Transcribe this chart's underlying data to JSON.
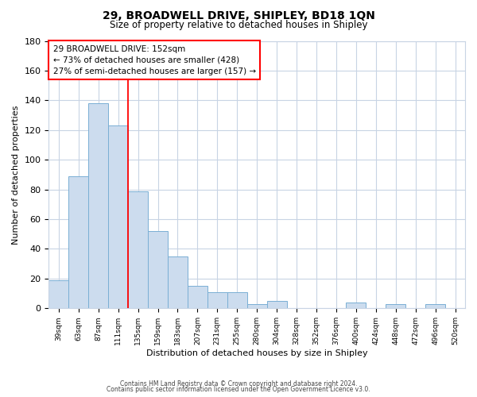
{
  "title": "29, BROADWELL DRIVE, SHIPLEY, BD18 1QN",
  "subtitle": "Size of property relative to detached houses in Shipley",
  "xlabel": "Distribution of detached houses by size in Shipley",
  "ylabel": "Number of detached properties",
  "bar_labels": [
    "39sqm",
    "63sqm",
    "87sqm",
    "111sqm",
    "135sqm",
    "159sqm",
    "183sqm",
    "207sqm",
    "231sqm",
    "255sqm",
    "280sqm",
    "304sqm",
    "328sqm",
    "352sqm",
    "376sqm",
    "400sqm",
    "424sqm",
    "448sqm",
    "472sqm",
    "496sqm",
    "520sqm"
  ],
  "bar_heights": [
    19,
    89,
    138,
    123,
    79,
    52,
    35,
    15,
    11,
    11,
    3,
    5,
    0,
    0,
    0,
    4,
    0,
    3,
    0,
    3,
    0
  ],
  "bar_color": "#ccdcee",
  "bar_edge_color": "#7aafd4",
  "ylim": [
    0,
    180
  ],
  "yticks": [
    0,
    20,
    40,
    60,
    80,
    100,
    120,
    140,
    160,
    180
  ],
  "vline_pos": 3.5,
  "annotation_title": "29 BROADWELL DRIVE: 152sqm",
  "annotation_line1": "← 73% of detached houses are smaller (428)",
  "annotation_line2": "27% of semi-detached houses are larger (157) →",
  "footer_line1": "Contains HM Land Registry data © Crown copyright and database right 2024.",
  "footer_line2": "Contains public sector information licensed under the Open Government Licence v3.0.",
  "background_color": "#ffffff",
  "grid_color": "#c8d4e4"
}
